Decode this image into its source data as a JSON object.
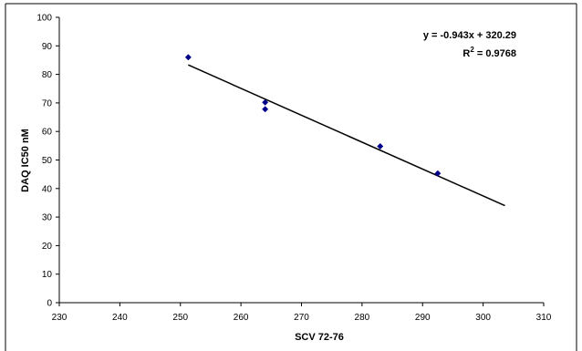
{
  "chart_data": {
    "type": "scatter",
    "title": "",
    "xlabel": "SCV 72-76",
    "ylabel": "DAQ IC50 nM",
    "xlim": [
      230,
      310
    ],
    "ylim": [
      0,
      100
    ],
    "x_ticks": [
      230,
      240,
      250,
      260,
      270,
      280,
      290,
      300,
      310
    ],
    "y_ticks": [
      0,
      10,
      20,
      30,
      40,
      50,
      60,
      70,
      80,
      90,
      100
    ],
    "grid": false,
    "points": [
      {
        "x": 251.3,
        "y": 86.0
      },
      {
        "x": 264.0,
        "y": 70.2
      },
      {
        "x": 264.0,
        "y": 67.8
      },
      {
        "x": 283.0,
        "y": 54.8
      },
      {
        "x": 292.5,
        "y": 45.3
      }
    ],
    "trendline": {
      "slope": -0.943,
      "intercept": 320.29,
      "x_start": 251.3,
      "x_end": 303.6
    },
    "marker_color": "#00008B",
    "line_color": "#000000",
    "annotation": {
      "equation": "y = -0.943x + 320.29",
      "r2_prefix": "R",
      "r2_exp": "2",
      "r2_suffix": " = 0.9768"
    }
  }
}
